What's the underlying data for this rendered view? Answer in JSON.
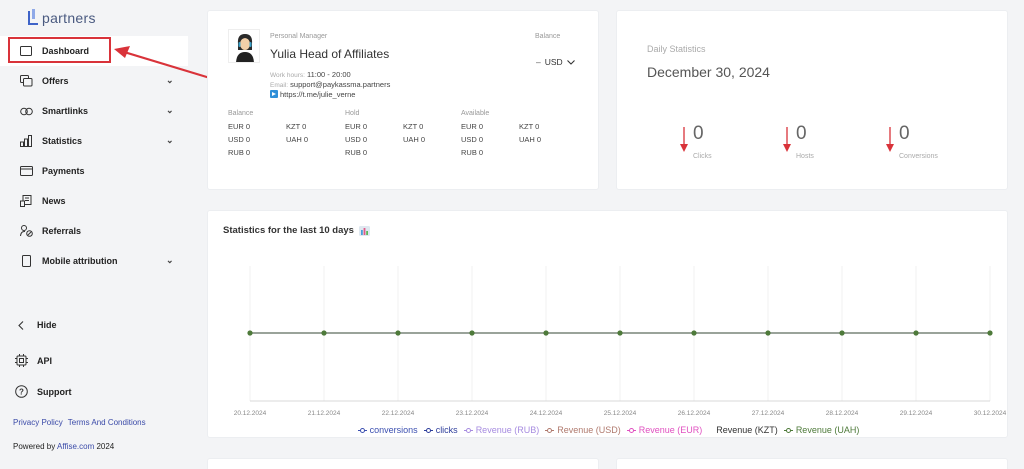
{
  "brand": {
    "logo_text": "partners"
  },
  "sidebar": {
    "items": [
      {
        "label": "Dashboard",
        "icon": "dashboard-icon",
        "active": true,
        "has_chevron": false
      },
      {
        "label": "Offers",
        "icon": "offers-icon",
        "has_chevron": true
      },
      {
        "label": "Smartlinks",
        "icon": "link-icon",
        "has_chevron": true
      },
      {
        "label": "Statistics",
        "icon": "bar-chart-icon",
        "has_chevron": true
      },
      {
        "label": "Payments",
        "icon": "card-icon",
        "has_chevron": false
      },
      {
        "label": "News",
        "icon": "news-icon",
        "has_chevron": false
      },
      {
        "label": "Referrals",
        "icon": "referrals-icon",
        "has_chevron": false
      },
      {
        "label": "Mobile attribution",
        "icon": "mobile-icon",
        "has_chevron": true
      }
    ],
    "chevron": "⌄",
    "hide_label": "Hide",
    "api_label": "API",
    "support_label": "Support",
    "privacy_policy": "Privacy Policy",
    "terms": "Terms And Conditions",
    "powered_prefix": "Powered by ",
    "powered_link": "Affise.com",
    "powered_year": " 2024"
  },
  "manager": {
    "label": "Personal Manager",
    "name": "Yulia Head of Affiliates",
    "work_hours_key": "Work hours:",
    "work_hours": "11:00 - 20:00",
    "email_key": "Email:",
    "email": "support@paykassma.partners",
    "telegram": "https://t.me/julie_verne",
    "balance_label": "Balance",
    "balance_dash": "–",
    "currency": "USD",
    "groups": [
      {
        "title": "Balance",
        "col1": [
          "EUR 0",
          "USD 0",
          "RUB 0"
        ],
        "col2": [
          "KZT 0",
          "UAH 0"
        ]
      },
      {
        "title": "Hold",
        "col1": [
          "EUR 0",
          "USD 0",
          "RUB 0"
        ],
        "col2": [
          "KZT 0",
          "UAH 0"
        ]
      },
      {
        "title": "Available",
        "col1": [
          "EUR 0",
          "USD 0",
          "RUB 0"
        ],
        "col2": [
          "KZT 0",
          "UAH 0"
        ]
      }
    ]
  },
  "daily": {
    "label": "Daily Statistics",
    "date": "December 30, 2024",
    "stats": [
      {
        "value": "0",
        "label": "Clicks",
        "trend": "down"
      },
      {
        "value": "0",
        "label": "Hosts",
        "trend": "down"
      },
      {
        "value": "0",
        "label": "Conversions",
        "trend": "down"
      }
    ],
    "trend_color": "#d9333a"
  },
  "chart_section": {
    "title": "Statistics for the last 10 days",
    "emoji": "📊"
  },
  "chart_data": {
    "type": "line",
    "title": "Statistics for the last 10 days",
    "x": [
      "20.12.2024",
      "21.12.2024",
      "22.12.2024",
      "23.12.2024",
      "24.12.2024",
      "25.12.2024",
      "26.12.2024",
      "27.12.2024",
      "28.12.2024",
      "29.12.2024",
      "30.12.2024"
    ],
    "series": [
      {
        "name": "conversions",
        "color": "#3b4fb0",
        "values": [
          0,
          0,
          0,
          0,
          0,
          0,
          0,
          0,
          0,
          0,
          0
        ]
      },
      {
        "name": "clicks",
        "color": "#2e3e9c",
        "values": [
          0,
          0,
          0,
          0,
          0,
          0,
          0,
          0,
          0,
          0,
          0
        ]
      },
      {
        "name": "Revenue (RUB)",
        "color": "#a78ce0",
        "values": [
          0,
          0,
          0,
          0,
          0,
          0,
          0,
          0,
          0,
          0,
          0
        ]
      },
      {
        "name": "Revenue (USD)",
        "color": "#b07a6e",
        "values": [
          0,
          0,
          0,
          0,
          0,
          0,
          0,
          0,
          0,
          0,
          0
        ]
      },
      {
        "name": "Revenue (EUR)",
        "color": "#e050c0",
        "values": [
          0,
          0,
          0,
          0,
          0,
          0,
          0,
          0,
          0,
          0,
          0
        ]
      },
      {
        "name": "Revenue (KZT)",
        "color": "#333333",
        "values": [
          0,
          0,
          0,
          0,
          0,
          0,
          0,
          0,
          0,
          0,
          0
        ]
      },
      {
        "name": "Revenue (UAH)",
        "color": "#4e7a3a",
        "values": [
          0,
          0,
          0,
          0,
          0,
          0,
          0,
          0,
          0,
          0,
          0
        ]
      }
    ],
    "xlabel": "",
    "ylabel": "",
    "grid": true,
    "legend_position": "bottom"
  },
  "colors": {
    "accent": "#3a4aa8",
    "annotation_red": "#d9333a",
    "series_line": "#9aa39a",
    "series_point": "#4e7a3a"
  }
}
